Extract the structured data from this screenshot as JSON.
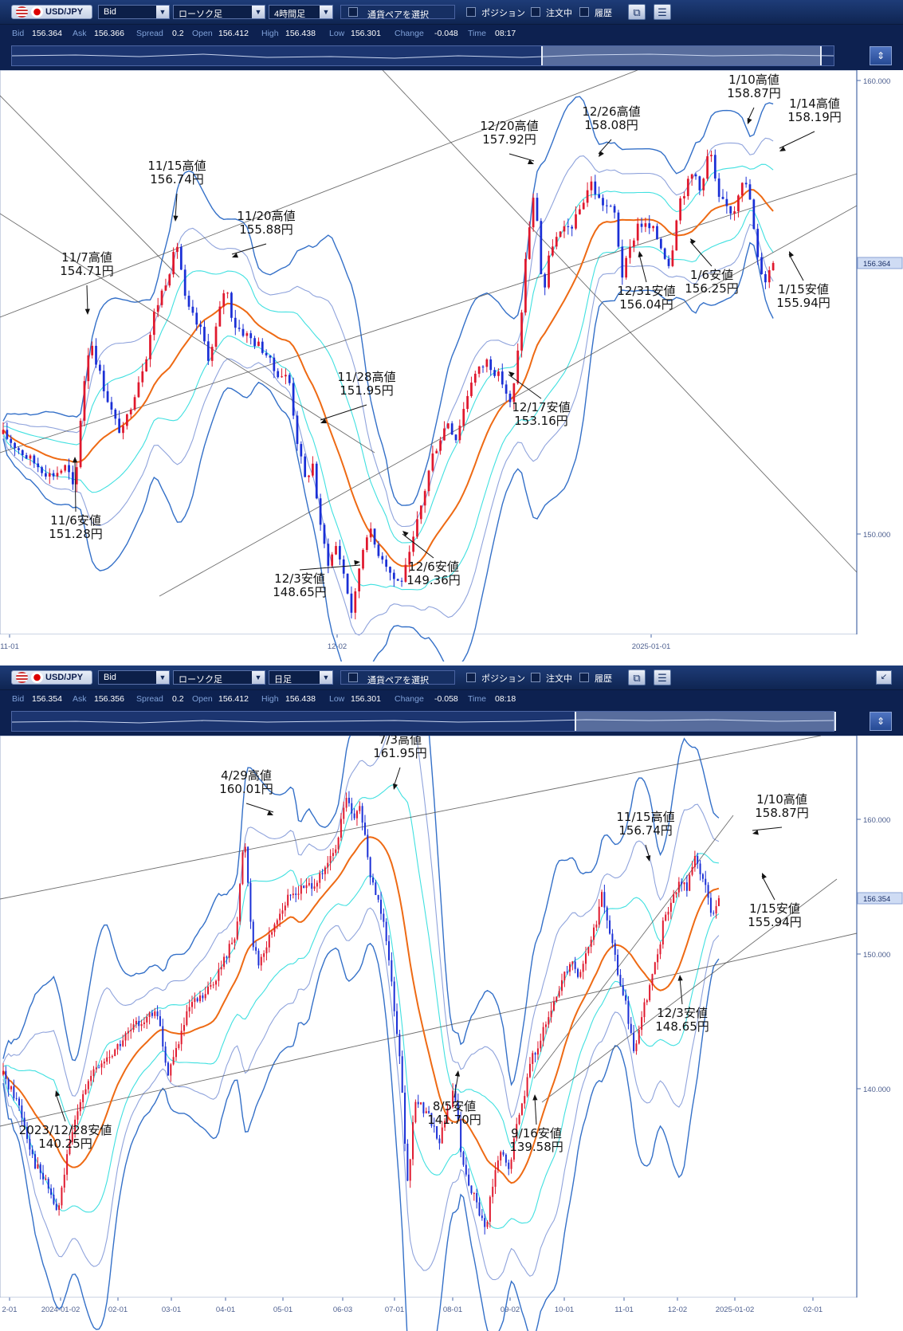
{
  "panels": [
    {
      "symbol": "USD/JPY",
      "price_type": "Bid",
      "chart_type": "ローソク足",
      "timeframe": "4時間足",
      "pair_select": "通貨ペアを選択",
      "toggles": [
        "ポジション",
        "注文中",
        "履歴"
      ],
      "ticker": {
        "Bid": "156.364",
        "Ask": "156.366",
        "Spread": "0.2",
        "Open": "156.412",
        "High": "156.438",
        "Low": "156.301",
        "Change": "-0.048",
        "Time": "08:17"
      },
      "price_tag": "156.364"
    },
    {
      "symbol": "USD/JPY",
      "price_type": "Bid",
      "chart_type": "ローソク足",
      "timeframe": "日足",
      "pair_select": "通貨ペアを選択",
      "toggles": [
        "ポジション",
        "注文中",
        "履歴"
      ],
      "ticker": {
        "Bid": "156.354",
        "Ask": "156.356",
        "Spread": "0.2",
        "Open": "156.412",
        "High": "156.438",
        "Low": "156.301",
        "Change": "-0.058",
        "Time": "08:18"
      },
      "price_tag": "156.354"
    }
  ],
  "colors": {
    "up": "#e0182d",
    "down": "#1a2fd6",
    "ma": "#ee6a14",
    "band1": "#40e0e0",
    "band2": "#8fa3dc",
    "band3": "#3470c8",
    "trend": "#555555"
  },
  "chart_data": [
    {
      "type": "candlestick",
      "title": "USD/JPY 4時間足",
      "ylim": [
        148.25,
        160.5
      ],
      "y_ticks": [
        "160.000",
        "150.000"
      ],
      "x_ticks": [
        "11-01",
        "12-02",
        "2025-01-01"
      ],
      "x_index_range": [
        0,
        100
      ],
      "series": [
        {
          "name": "USD/JPY",
          "close_path": [
            [
              0,
              152.6
            ],
            [
              3,
              152.1
            ],
            [
              6,
              151.7
            ],
            [
              8,
              151.9
            ],
            [
              9,
              151.28
            ],
            [
              10,
              153.5
            ],
            [
              11,
              154.71
            ],
            [
              12,
              154.0
            ],
            [
              14,
              152.9
            ],
            [
              15,
              152.6
            ],
            [
              16,
              153.2
            ],
            [
              18,
              154.3
            ],
            [
              19,
              155.2
            ],
            [
              21,
              156.2
            ],
            [
              22,
              156.74
            ],
            [
              23,
              155.4
            ],
            [
              25,
              154.8
            ],
            [
              26,
              154.2
            ],
            [
              28,
              155.88
            ],
            [
              29,
              155.0
            ],
            [
              31,
              154.7
            ],
            [
              33,
              154.4
            ],
            [
              34,
              154.0
            ],
            [
              36,
              153.8
            ],
            [
              37,
              152.5
            ],
            [
              38,
              151.6
            ],
            [
              39,
              151.95
            ],
            [
              40,
              150.5
            ],
            [
              41,
              149.8
            ],
            [
              42,
              150.2
            ],
            [
              43,
              149.5
            ],
            [
              44,
              148.65
            ],
            [
              45,
              149.9
            ],
            [
              46,
              150.6
            ],
            [
              47,
              150.1
            ],
            [
              48,
              149.9
            ],
            [
              49,
              149.5
            ],
            [
              50,
              149.36
            ],
            [
              51,
              149.8
            ],
            [
              53,
              151.3
            ],
            [
              54,
              152.1
            ],
            [
              56,
              152.9
            ],
            [
              57,
              152.5
            ],
            [
              59,
              153.8
            ],
            [
              61,
              154.2
            ],
            [
              63,
              153.7
            ],
            [
              64,
              153.16
            ],
            [
              65,
              154.6
            ],
            [
              66,
              156.8
            ],
            [
              67,
              157.92
            ],
            [
              68,
              155.5
            ],
            [
              69,
              156.7
            ],
            [
              70,
              156.9
            ],
            [
              72,
              157.2
            ],
            [
              74,
              158.08
            ],
            [
              75,
              157.7
            ],
            [
              77,
              157.4
            ],
            [
              78,
              156.04
            ],
            [
              80,
              157.2
            ],
            [
              82,
              157.0
            ],
            [
              84,
              156.25
            ],
            [
              85,
              157.6
            ],
            [
              87,
              158.3
            ],
            [
              88,
              157.9
            ],
            [
              89,
              158.87
            ],
            [
              90,
              157.7
            ],
            [
              92,
              157.4
            ],
            [
              93,
              158.19
            ],
            [
              94,
              157.8
            ],
            [
              95,
              156.4
            ],
            [
              96,
              155.94
            ],
            [
              97,
              156.36
            ]
          ]
        }
      ],
      "annotations": [
        {
          "date": "11/6",
          "label": "11/6安値",
          "price": "151.28円"
        },
        {
          "date": "11/7",
          "label": "11/7高値",
          "price": "154.71円"
        },
        {
          "date": "11/15",
          "label": "11/15高値",
          "price": "156.74円"
        },
        {
          "date": "11/20",
          "label": "11/20高値",
          "price": "155.88円"
        },
        {
          "date": "11/28",
          "label": "11/28高値",
          "price": "151.95円"
        },
        {
          "date": "12/3",
          "label": "12/3安値",
          "price": "148.65円"
        },
        {
          "date": "12/6",
          "label": "12/6安値",
          "price": "149.36円"
        },
        {
          "date": "12/17",
          "label": "12/17安値",
          "price": "153.16円"
        },
        {
          "date": "12/20",
          "label": "12/20高値",
          "price": "157.92円"
        },
        {
          "date": "12/26",
          "label": "12/26高値",
          "price": "158.08円"
        },
        {
          "date": "12/31",
          "label": "12/31安値",
          "price": "156.04円"
        },
        {
          "date": "1/6",
          "label": "1/6安値",
          "price": "156.25円"
        },
        {
          "date": "1/10",
          "label": "1/10高値",
          "price": "158.87円"
        },
        {
          "date": "1/14",
          "label": "1/14高値",
          "price": "158.19円"
        },
        {
          "date": "1/15",
          "label": "1/15安値",
          "price": "155.94円"
        }
      ]
    },
    {
      "type": "candlestick",
      "title": "USD/JPY 日足",
      "ylim": [
        136.0,
        165.0
      ],
      "y_ticks": [
        "160.000",
        "150.000",
        "140.000"
      ],
      "x_ticks": [
        "2-01",
        "2024-01-02",
        "02-01",
        "03-01",
        "04-01",
        "05-01",
        "06-03",
        "07-01",
        "08-01",
        "09-02",
        "10-01",
        "11-01",
        "12-02",
        "2025-01-02",
        "02-01"
      ],
      "x_index_range": [
        0,
        100
      ],
      "series": [
        {
          "name": "USD/JPY",
          "close_path": [
            [
              0,
              147.5
            ],
            [
              2,
              146.0
            ],
            [
              4,
              143.0
            ],
            [
              6,
              141.5
            ],
            [
              7,
              140.25
            ],
            [
              8,
              142.8
            ],
            [
              10,
              146.5
            ],
            [
              12,
              147.8
            ],
            [
              14,
              148.6
            ],
            [
              16,
              149.6
            ],
            [
              18,
              150.4
            ],
            [
              20,
              150.6
            ],
            [
              21,
              147.5
            ],
            [
              22,
              148.5
            ],
            [
              24,
              151.0
            ],
            [
              26,
              151.6
            ],
            [
              28,
              153.0
            ],
            [
              30,
              155.0
            ],
            [
              31,
              160.01
            ],
            [
              32,
              154.5
            ],
            [
              33,
              153.2
            ],
            [
              35,
              155.5
            ],
            [
              37,
              156.8
            ],
            [
              39,
              157.2
            ],
            [
              41,
              157.7
            ],
            [
              43,
              159.4
            ],
            [
              44,
              161.95
            ],
            [
              45,
              160.6
            ],
            [
              46,
              161.3
            ],
            [
              47,
              158.0
            ],
            [
              49,
              155.5
            ],
            [
              51,
              148.5
            ],
            [
              52,
              141.7
            ],
            [
              53,
              146.3
            ],
            [
              55,
              145.2
            ],
            [
              56,
              144.0
            ],
            [
              58,
              146.8
            ],
            [
              59,
              143.0
            ],
            [
              61,
              140.6
            ],
            [
              62,
              139.58
            ],
            [
              63,
              142.0
            ],
            [
              64,
              143.5
            ],
            [
              65,
              142.5
            ],
            [
              66,
              144.8
            ],
            [
              68,
              148.4
            ],
            [
              70,
              150.2
            ],
            [
              72,
              152.6
            ],
            [
              73,
              153.5
            ],
            [
              74,
              152.6
            ],
            [
              76,
              155.0
            ],
            [
              77,
              156.74
            ],
            [
              78,
              154.8
            ],
            [
              79,
              152.8
            ],
            [
              80,
              151.2
            ],
            [
              81,
              148.65
            ],
            [
              82,
              150.5
            ],
            [
              84,
              153.4
            ],
            [
              85,
              155.6
            ],
            [
              87,
              157.4
            ],
            [
              88,
              157.2
            ],
            [
              89,
              158.87
            ],
            [
              90,
              157.5
            ],
            [
              91,
              155.94
            ],
            [
              92,
              156.35
            ]
          ]
        }
      ],
      "annotations": [
        {
          "date": "2023/12/28",
          "label": "2023/12/28安値",
          "price": "140.25円"
        },
        {
          "date": "4/29",
          "label": "4/29高値",
          "price": "160.01円"
        },
        {
          "date": "7/3",
          "label": "7/3高値",
          "price": "161.95円"
        },
        {
          "date": "8/5",
          "label": "8/5安値",
          "price": "141.70円"
        },
        {
          "date": "9/16",
          "label": "9/16安値",
          "price": "139.58円"
        },
        {
          "date": "11/15",
          "label": "11/15高値",
          "price": "156.74円"
        },
        {
          "date": "12/3",
          "label": "12/3安値",
          "price": "148.65円"
        },
        {
          "date": "1/10",
          "label": "1/10高値",
          "price": "158.87円"
        },
        {
          "date": "1/15",
          "label": "1/15安値",
          "price": "155.94円"
        }
      ]
    }
  ]
}
